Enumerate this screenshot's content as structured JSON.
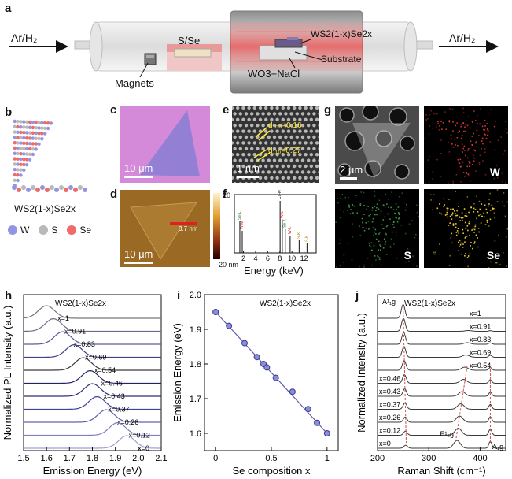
{
  "panels": {
    "a": {
      "label": "a",
      "gas_in": "Ar/H₂",
      "gas_out": "Ar/H₂",
      "source": "S/Se",
      "product": "WS2(1-x)Se2x",
      "substrate": "Substrate",
      "precursor": "WO3+NaCl",
      "magnets": "Magnets"
    },
    "b": {
      "label": "b",
      "formula": "WS2(1-x)Se2x",
      "legend": [
        {
          "name": "W",
          "color": "#9494e4"
        },
        {
          "name": "S",
          "color": "#b9b9b9"
        },
        {
          "name": "Se",
          "color": "#ee6b6b"
        }
      ]
    },
    "c": {
      "label": "c",
      "scale": "10 μm"
    },
    "d": {
      "label": "d",
      "scale": "10 μm",
      "height_note": "0.7 nm",
      "cbar_max": "20",
      "cbar_min": "-20 nm"
    },
    "e": {
      "label": "e",
      "scale": "1 nm",
      "d1": "d₁₀₀=0.16",
      "d2": "d₁₁₀=0.27"
    },
    "f": {
      "label": "f",
      "xlabel": "Energy (keV)",
      "ticks": [
        "2",
        "4",
        "6",
        "8",
        "10",
        "12"
      ],
      "peaks": [
        "W-M",
        "Se-L",
        "Cu-Kα",
        "W-L",
        "Se-K",
        "W-L",
        "S-K"
      ]
    },
    "g": {
      "label": "g",
      "scale": "2 μm",
      "maps": [
        "W",
        "S",
        "Se"
      ]
    },
    "h": {
      "label": "h",
      "legend_title": "WS2(1-x)Se2x"
    },
    "i": {
      "label": "i",
      "legend_title": "WS2(1-x)Se2x"
    },
    "j": {
      "label": "j",
      "legend_title": "WS2(1-x)Se2x",
      "peak_a1g_top": "A¹₁g",
      "peak_e2g": "E¹₂g",
      "peak_a1g": "A₁g"
    }
  },
  "chart_data": [
    {
      "id": "h",
      "type": "line",
      "title": "",
      "xlabel": "Emission Energy (eV)",
      "ylabel": "Normalized PL Intensity (a.u.)",
      "xlim": [
        1.5,
        2.1
      ],
      "xticks": [
        "1.5",
        "1.6",
        "1.7",
        "1.8",
        "1.9",
        "2.0",
        "2.1"
      ],
      "series": [
        {
          "name": "x=1",
          "peak": 1.6
        },
        {
          "name": "x=0.91",
          "peak": 1.63
        },
        {
          "name": "x=0.83",
          "peak": 1.67
        },
        {
          "name": "x=0.69",
          "peak": 1.72
        },
        {
          "name": "x=0.54",
          "peak": 1.76
        },
        {
          "name": "x=0.46",
          "peak": 1.79
        },
        {
          "name": "x=0.43",
          "peak": 1.8
        },
        {
          "name": "x=0.37",
          "peak": 1.82
        },
        {
          "name": "x=0.26",
          "peak": 1.86
        },
        {
          "name": "x=0.12",
          "peak": 1.91
        },
        {
          "name": "x=0",
          "peak": 1.95
        }
      ]
    },
    {
      "id": "i",
      "type": "scatter",
      "title": "",
      "xlabel": "Se composition x",
      "ylabel": "Emission Energy (eV)",
      "xlim": [
        -0.1,
        1.1
      ],
      "ylim": [
        1.55,
        2.0
      ],
      "xticks": [
        "0",
        "0.5",
        "1"
      ],
      "yticks": [
        "1.6",
        "1.7",
        "1.8",
        "1.9",
        "2.0"
      ],
      "x": [
        0,
        0.12,
        0.26,
        0.37,
        0.43,
        0.46,
        0.54,
        0.69,
        0.83,
        0.91,
        1.0
      ],
      "y": [
        1.95,
        1.91,
        1.86,
        1.82,
        1.8,
        1.79,
        1.76,
        1.72,
        1.67,
        1.63,
        1.6
      ],
      "fit": [
        [
          0,
          1.95
        ],
        [
          1.0,
          1.6
        ]
      ]
    },
    {
      "id": "j",
      "type": "line",
      "title": "",
      "xlabel": "Raman Shift (cm⁻¹)",
      "ylabel": "Normalized Intensity (a.u.)",
      "xlim": [
        200,
        450
      ],
      "xticks": [
        "200",
        "300",
        "400"
      ],
      "series": [
        {
          "name": "x=1"
        },
        {
          "name": "x=0.91"
        },
        {
          "name": "x=0.83"
        },
        {
          "name": "x=0.69"
        },
        {
          "name": "x=0.54"
        },
        {
          "name": "x=0.46"
        },
        {
          "name": "x=0.43"
        },
        {
          "name": "x=0.37"
        },
        {
          "name": "x=0.26"
        },
        {
          "name": "x=0.12"
        },
        {
          "name": "x=0"
        }
      ]
    }
  ]
}
